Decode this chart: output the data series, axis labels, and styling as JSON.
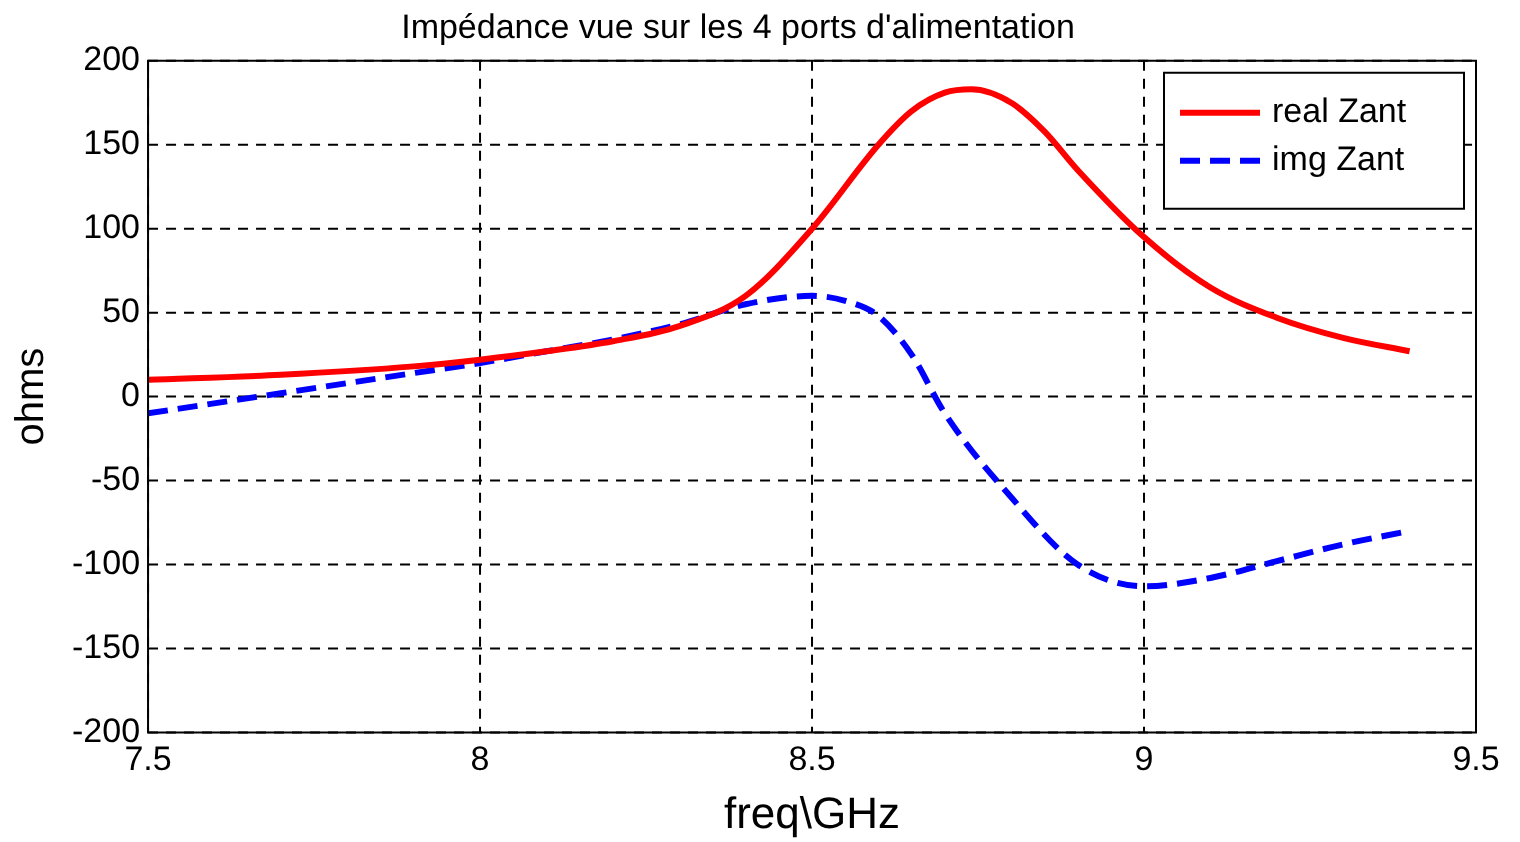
{
  "chart_data": {
    "type": "line",
    "title": "Impédance vue sur les 4 ports d'alimentation",
    "xlabel": "freq\\GHz",
    "ylabel": "ohms",
    "xlim": [
      7.5,
      9.5
    ],
    "xticks": [
      7.5,
      8,
      8.5,
      9,
      9.5
    ],
    "ylim": [
      -200,
      200
    ],
    "yticks": [
      -200,
      -150,
      -100,
      -50,
      0,
      50,
      100,
      150,
      200
    ],
    "grid": true,
    "legend": "top right",
    "marker": "none",
    "series": [
      {
        "name": "real Zant",
        "color": "#ff0000",
        "line_style": "solid",
        "x": [
          7.5,
          7.7,
          7.9,
          8.0,
          8.1,
          8.2,
          8.3,
          8.4,
          8.5,
          8.6,
          8.65,
          8.7,
          8.74,
          8.8,
          8.85,
          8.9,
          9.0,
          9.1,
          9.2,
          9.3,
          9.4
        ],
        "values": [
          10,
          13,
          18,
          22,
          27,
          33,
          42,
          60,
          100,
          150,
          170,
          181,
          183,
          175,
          158,
          135,
          95,
          65,
          47,
          35,
          27
        ]
      },
      {
        "name": "img Zant",
        "color": "#0000ff",
        "line_style": "dashed",
        "x": [
          7.5,
          7.7,
          7.9,
          8.0,
          8.1,
          8.2,
          8.3,
          8.4,
          8.5,
          8.55,
          8.6,
          8.65,
          8.7,
          8.8,
          8.9,
          9.0,
          9.1,
          9.2,
          9.3,
          9.4
        ],
        "values": [
          -10,
          2,
          14,
          20,
          27,
          34,
          43,
          55,
          60,
          57,
          48,
          25,
          -10,
          -60,
          -100,
          -113,
          -108,
          -98,
          -88,
          -80
        ]
      }
    ]
  }
}
